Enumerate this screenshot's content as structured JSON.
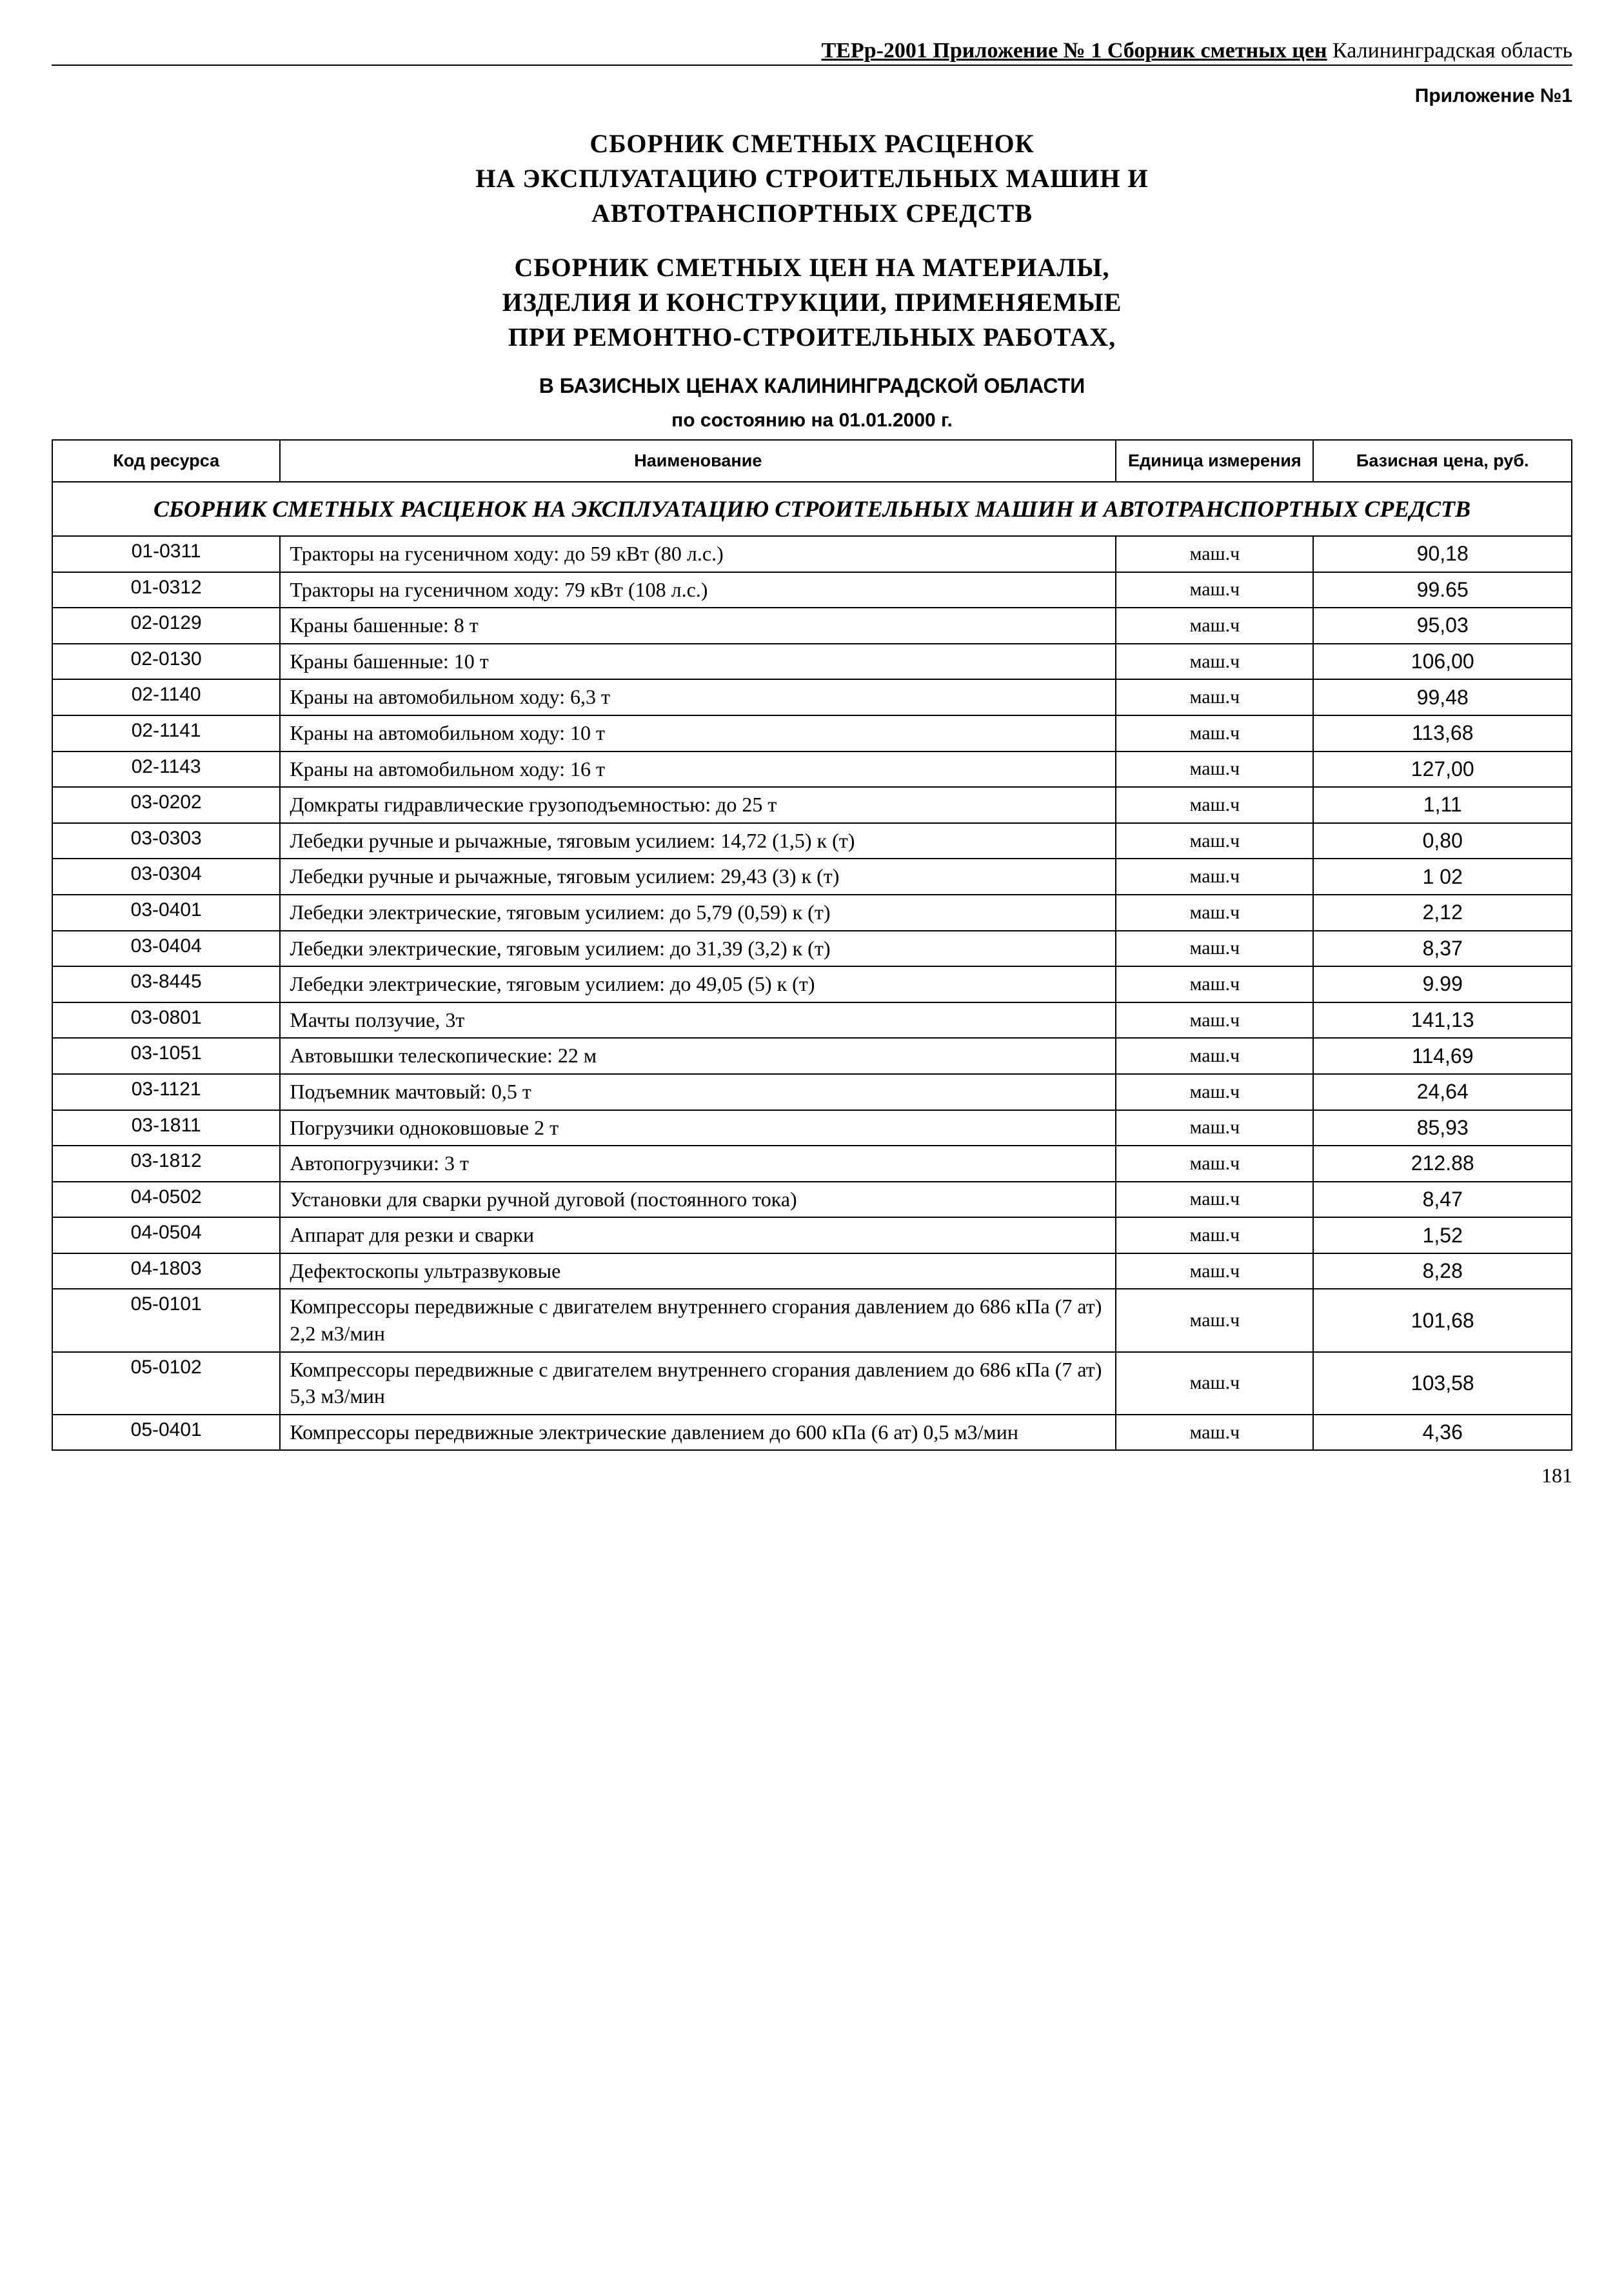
{
  "header": {
    "bold_underlined": "ТЕРр-2001 Приложение № 1 Сборник сметных цен",
    "region": " Калининградская область"
  },
  "annex_label": "Приложение №1",
  "title_lines": [
    "СБОРНИК СМЕТНЫХ РАСЦЕНОК",
    "НА ЭКСПЛУАТАЦИЮ СТРОИТЕЛЬНЫХ МАШИН И",
    "АВТОТРАНСПОРТНЫХ СРЕДСТВ"
  ],
  "subtitle_lines": [
    "СБОРНИК СМЕТНЫХ ЦЕН НА МАТЕРИАЛЫ,",
    "ИЗДЕЛИЯ И КОНСТРУКЦИИ, ПРИМЕНЯЕМЫЕ",
    "ПРИ РЕМОНТНО-СТРОИТЕЛЬНЫХ РАБОТАХ,"
  ],
  "basis_line": "В БАЗИСНЫХ ЦЕНАХ КАЛИНИНГРАДСКОЙ ОБЛАСТИ",
  "date_line": "по состоянию на 01.01.2000 г.",
  "table": {
    "columns": [
      "Код ресурса",
      "Наименование",
      "Единица измерения",
      "Базисная цена, руб."
    ],
    "section_header": "СБОРНИК СМЕТНЫХ РАСЦЕНОК НА ЭКСПЛУАТАЦИЮ СТРОИТЕЛЬНЫХ МАШИН И АВТОТРАНСПОРТНЫХ СРЕДСТВ",
    "rows": [
      {
        "code": "01-0311",
        "name": "Тракторы на гусеничном ходу: до 59 кВт (80 л.с.)",
        "unit": "маш.ч",
        "price": "90,18"
      },
      {
        "code": "01-0312",
        "name": "Тракторы на гусеничном ходу: 79 кВт (108 л.с.)",
        "unit": "маш.ч",
        "price": "99.65"
      },
      {
        "code": "02-0129",
        "name": "Краны башенные: 8 т",
        "unit": "маш.ч",
        "price": "95,03"
      },
      {
        "code": "02-0130",
        "name": "Краны башенные: 10 т",
        "unit": "маш.ч",
        "price": "106,00"
      },
      {
        "code": "02-1140",
        "name": "Краны на автомобильном ходу: 6,3 т",
        "unit": "маш.ч",
        "price": "99,48"
      },
      {
        "code": "02-1141",
        "name": "Краны на автомобильном ходу: 10 т",
        "unit": "маш.ч",
        "price": "113,68"
      },
      {
        "code": "02-1143",
        "name": "Краны на автомобильном ходу: 16 т",
        "unit": "маш.ч",
        "price": "127,00"
      },
      {
        "code": "03-0202",
        "name": "Домкраты гидравлические грузоподъемностью: до 25 т",
        "unit": "маш.ч",
        "price": "1,11"
      },
      {
        "code": "03-0303",
        "name": "Лебедки ручные и рычажные, тяговым усилием: 14,72 (1,5) к (т)",
        "unit": "маш.ч",
        "price": "0,80"
      },
      {
        "code": "03-0304",
        "name": "Лебедки ручные и рычажные, тяговым усилием: 29,43 (3) к (т)",
        "unit": "маш.ч",
        "price": "1 02"
      },
      {
        "code": "03-0401",
        "name": "Лебедки электрические, тяговым усилием: до 5,79 (0,59) к (т)",
        "unit": "маш.ч",
        "price": "2,12"
      },
      {
        "code": "03-0404",
        "name": "Лебедки электрические, тяговым усилием: до 31,39 (3,2) к (т)",
        "unit": "маш.ч",
        "price": "8,37"
      },
      {
        "code": "03-8445",
        "name": "Лебедки электрические, тяговым усилием: до 49,05 (5) к (т)",
        "unit": "маш.ч",
        "price": "9.99"
      },
      {
        "code": "03-0801",
        "name": "Мачты ползучие, 3т",
        "unit": "маш.ч",
        "price": "141,13"
      },
      {
        "code": "03-1051",
        "name": "Автовышки телескопические: 22 м",
        "unit": "маш.ч",
        "price": "114,69"
      },
      {
        "code": "03-1121",
        "name": "Подъемник мачтовый: 0,5 т",
        "unit": "маш.ч",
        "price": "24,64"
      },
      {
        "code": "03-1811",
        "name": "Погрузчики одноковшовые 2 т",
        "unit": "маш.ч",
        "price": "85,93"
      },
      {
        "code": "03-1812",
        "name": "Автопогрузчики: 3 т",
        "unit": "маш.ч",
        "price": "212.88"
      },
      {
        "code": "04-0502",
        "name": "Установки для сварки ручной дуговой (постоянного тока)",
        "unit": "маш.ч",
        "price": "8,47"
      },
      {
        "code": "04-0504",
        "name": "Аппарат для резки и сварки",
        "unit": "маш.ч",
        "price": "1,52"
      },
      {
        "code": "04-1803",
        "name": "Дефектоскопы ультразвуковые",
        "unit": "маш.ч",
        "price": "8,28"
      },
      {
        "code": "05-0101",
        "name": "Компрессоры передвижные с двигателем внутреннего сгорания давлением до 686 кПа (7 ат) 2,2 м3/мин",
        "unit": "маш.ч",
        "price": "101,68"
      },
      {
        "code": "05-0102",
        "name": "Компрессоры передвижные с двигателем внутреннего сгорания давлением до 686 кПа (7 ат) 5,3 м3/мин",
        "unit": "маш.ч",
        "price": "103,58"
      },
      {
        "code": "05-0401",
        "name": "Компрессоры передвижные электрические давлением до 600 кПа (6 ат) 0,5 м3/мин",
        "unit": "маш.ч",
        "price": "4,36"
      }
    ]
  },
  "page_number": "181"
}
